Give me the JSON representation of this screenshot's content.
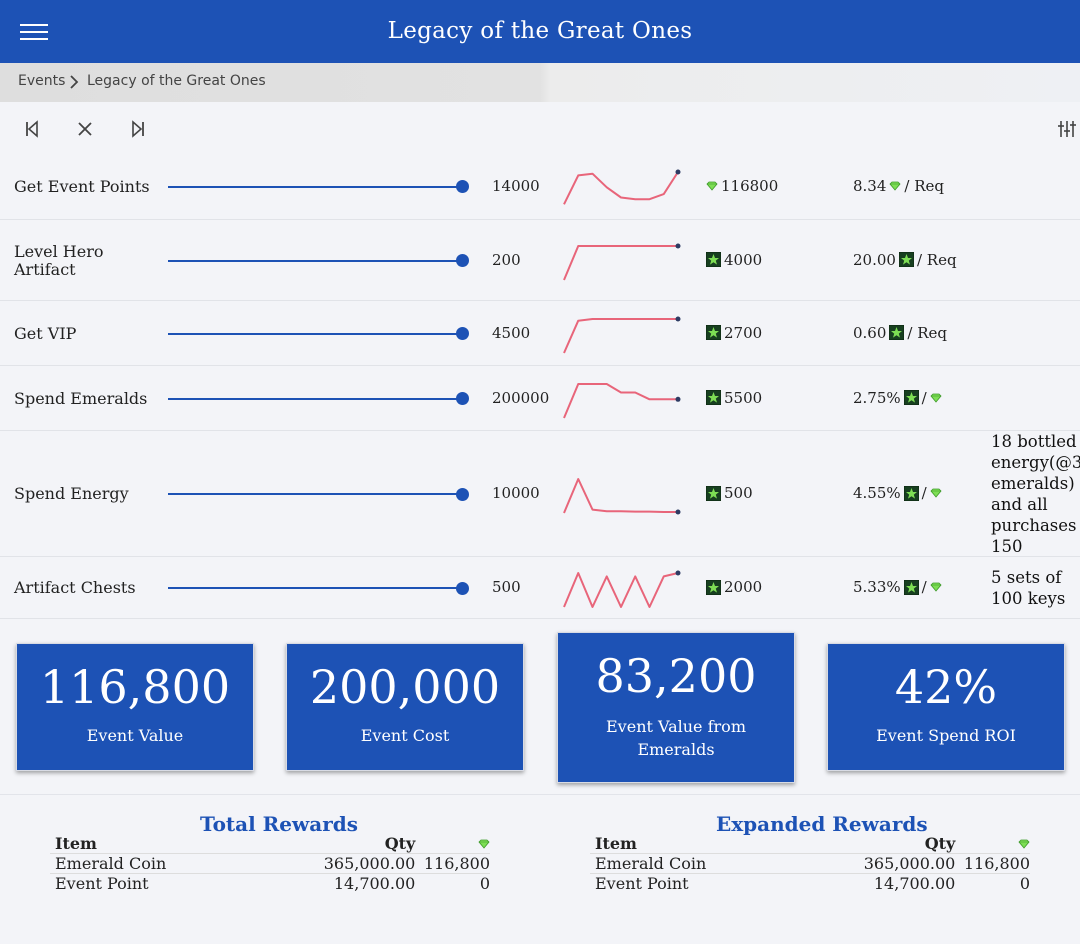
{
  "app": {
    "title": "Legacy of the Great Ones"
  },
  "breadcrumb": {
    "root": "Events",
    "current": "Legacy of the Great Ones"
  },
  "icons": {
    "menu": "menu-icon",
    "first": "skip-first-icon",
    "close": "close-icon",
    "last": "skip-last-icon",
    "filter": "sliders-icon",
    "emerald": "emerald-icon",
    "star": "star-badge-icon"
  },
  "colors": {
    "primary": "#1d52b5",
    "sparkline": "#e8657a",
    "emerald": "#7dde54"
  },
  "tasks": [
    {
      "label": "Get Event Points",
      "slider_pct": 100,
      "qty": "14000",
      "value": "116800",
      "value_icon": "emerald",
      "ratio": "8.34",
      "ratio_icon": "emerald",
      "ratio_suffix": "/ Req",
      "note": "",
      "spark": [
        0.05,
        0.9,
        0.95,
        0.55,
        0.25,
        0.2,
        0.2,
        0.35,
        1
      ]
    },
    {
      "label": "Level Hero Artifact",
      "slider_pct": 100,
      "qty": "200",
      "value": "4000",
      "value_icon": "star",
      "ratio": "20.00",
      "ratio_icon": "star",
      "ratio_suffix": "/ Req",
      "note": "",
      "spark": [
        0,
        1,
        1,
        1,
        1,
        1,
        1,
        1,
        1
      ]
    },
    {
      "label": "Get VIP",
      "slider_pct": 100,
      "qty": "4500",
      "value": "2700",
      "value_icon": "star",
      "ratio": "0.60",
      "ratio_icon": "star",
      "ratio_suffix": "/ Req",
      "note": "",
      "spark": [
        0,
        0.95,
        1,
        1,
        1,
        1,
        1,
        1,
        1
      ]
    },
    {
      "label": "Spend Emeralds",
      "slider_pct": 100,
      "qty": "200000",
      "value": "5500",
      "value_icon": "star",
      "ratio": "2.75%",
      "ratio_icon": "star",
      "ratio_suffix": "/",
      "ratio_tail_icon": "emerald",
      "note": "",
      "spark": [
        0,
        1,
        1,
        1,
        0.75,
        0.75,
        0.55,
        0.55,
        0.55
      ]
    },
    {
      "label": "Spend Energy",
      "slider_pct": 100,
      "qty": "10000",
      "value": "500",
      "value_icon": "star",
      "ratio": "4.55%",
      "ratio_icon": "star",
      "ratio_suffix": "/",
      "ratio_tail_icon": "emerald",
      "note": "18 bottled energy(@3 emeralds) and all purchases 150",
      "note_lines": [
        "18 bottled",
        "energy(@3",
        "emeralds)",
        "and all",
        "purchases",
        "150"
      ],
      "spark": [
        0,
        1,
        0.1,
        0.05,
        0.05,
        0.04,
        0.04,
        0.03,
        0.03
      ]
    },
    {
      "label": "Artifact Chests",
      "slider_pct": 100,
      "qty": "500",
      "value": "2000",
      "value_icon": "star",
      "ratio": "5.33%",
      "ratio_icon": "star",
      "ratio_suffix": "/",
      "ratio_tail_icon": "emerald",
      "note": "5 sets of 100 keys",
      "note_lines": [
        "5 sets of",
        "100 keys"
      ],
      "spark": [
        0,
        1,
        0,
        0.9,
        0,
        0.9,
        0,
        0.9,
        1
      ]
    }
  ],
  "stats": [
    {
      "value": "116,800",
      "label": "Event Value"
    },
    {
      "value": "200,000",
      "label": "Event Cost"
    },
    {
      "value": "83,200",
      "label": "Event Value from Emeralds",
      "label_lines": [
        "Event Value from",
        "Emeralds"
      ]
    },
    {
      "value": "42%",
      "label": "Event Spend ROI"
    }
  ],
  "total_rewards": {
    "title": "Total Rewards",
    "headers": {
      "item": "Item",
      "qty": "Qty"
    },
    "rows": [
      {
        "item": "Emerald Coin",
        "qty": "365,000.00",
        "emeralds": "116,800"
      },
      {
        "item": "Event Point",
        "qty": "14,700.00",
        "emeralds": "0"
      }
    ]
  },
  "expanded_rewards": {
    "title": "Expanded Rewards",
    "headers": {
      "item": "Item",
      "qty": "Qty"
    },
    "rows": [
      {
        "item": "Emerald Coin",
        "qty": "365,000.00",
        "emeralds": "116,800"
      },
      {
        "item": "Event Point",
        "qty": "14,700.00",
        "emeralds": "0"
      }
    ]
  }
}
